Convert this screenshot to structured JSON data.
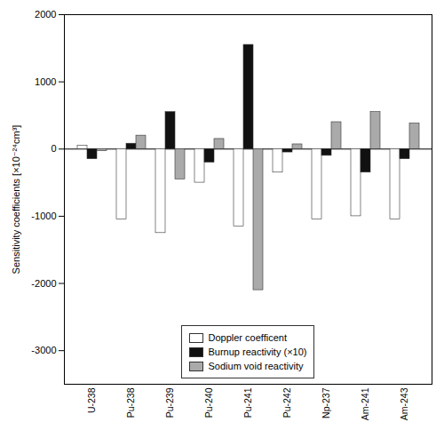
{
  "chart_data": {
    "type": "bar",
    "categories": [
      "U-238",
      "Pu-238",
      "Pu-239",
      "Pu-240",
      "Pu-241",
      "Pu-242",
      "Np-237",
      "Am-241",
      "Am-243"
    ],
    "series": [
      {
        "name": "Doppler coefficent",
        "color": "white",
        "values": [
          50,
          -1050,
          -1250,
          -500,
          -1150,
          -350,
          -1050,
          -1000,
          -1050
        ]
      },
      {
        "name": "Burnup reactivity (×10)",
        "color": "#111111",
        "values": [
          -150,
          80,
          550,
          -200,
          1550,
          -50,
          -100,
          -350,
          -150
        ]
      },
      {
        "name": "Sodium void reactivity",
        "color": "#aaaaaa",
        "values": [
          -30,
          200,
          -450,
          150,
          -2100,
          70,
          400,
          550,
          380
        ]
      }
    ],
    "ylabel": "Sensitivity coefficients [×10⁻²⁴cm³]",
    "ylim": [
      -3500,
      2000
    ],
    "yticks": [
      -3000,
      -2000,
      -1000,
      0,
      1000,
      2000
    ],
    "grid": false,
    "legend": "lower center"
  }
}
